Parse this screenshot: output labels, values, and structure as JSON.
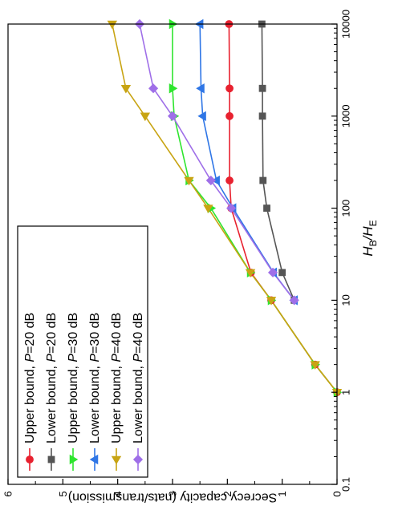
{
  "chart_data": {
    "type": "line",
    "x_scale": "log",
    "xlim": [
      0.1,
      10000
    ],
    "ylim": [
      0,
      6
    ],
    "x_ticks": [
      "0.1",
      "1",
      "10",
      "100",
      "1000",
      "10000"
    ],
    "y_ticks": [
      "0",
      "1",
      "2",
      "3",
      "4",
      "5",
      "6"
    ],
    "xlabel_main": "H",
    "xlabel_sub1": "B",
    "xlabel_mid": "/H",
    "xlabel_sub2": "E",
    "ylabel": "Secrecy capacity (nats/transmission)",
    "legend_position": "top-left",
    "grid": false,
    "series": [
      {
        "name_prefix": "Upper bound, ",
        "name_var": "P",
        "name_suffix": "=20 dB",
        "color": "#e8212f",
        "marker": "circle",
        "x": [
          1,
          2,
          10,
          20,
          100,
          200,
          1000,
          2000,
          10000
        ],
        "y": [
          0.0,
          0.4,
          1.2,
          1.57,
          1.93,
          1.96,
          1.96,
          1.96,
          1.97
        ]
      },
      {
        "name_prefix": "Lower bound, ",
        "name_var": "P",
        "name_suffix": "=20 dB",
        "color": "#555555",
        "marker": "square",
        "x": [
          10,
          20,
          100,
          200,
          1000,
          2000,
          10000
        ],
        "y": [
          0.78,
          1.0,
          1.28,
          1.35,
          1.36,
          1.36,
          1.37
        ]
      },
      {
        "name_prefix": "Upper bound, ",
        "name_var": "P",
        "name_suffix": "=30 dB",
        "color": "#2ee52e",
        "marker": "triangle-right",
        "x": [
          1,
          2,
          10,
          20,
          100,
          200,
          1000,
          2000,
          10000
        ],
        "y": [
          0.0,
          0.4,
          1.2,
          1.58,
          2.3,
          2.7,
          2.97,
          3.0,
          3.0
        ]
      },
      {
        "name_prefix": "Lower bound, ",
        "name_var": "P",
        "name_suffix": "=30 dB",
        "color": "#2f76e6",
        "marker": "triangle-left",
        "x": [
          10,
          20,
          100,
          200,
          1000,
          2000,
          10000
        ],
        "y": [
          0.78,
          1.16,
          1.9,
          2.2,
          2.45,
          2.48,
          2.5
        ]
      },
      {
        "name_prefix": "Upper bound, ",
        "name_var": "P",
        "name_suffix": "=40 dB",
        "color": "#c8a413",
        "marker": "triangle-down",
        "x": [
          1,
          2,
          10,
          20,
          100,
          200,
          1000,
          2000,
          10000
        ],
        "y": [
          0.0,
          0.4,
          1.2,
          1.58,
          2.35,
          2.7,
          3.5,
          3.85,
          4.1
        ]
      },
      {
        "name_prefix": "Lower bound, ",
        "name_var": "P",
        "name_suffix": "=40 dB",
        "color": "#9f6fe8",
        "marker": "diamond",
        "x": [
          10,
          20,
          100,
          200,
          1000,
          2000,
          10000
        ],
        "y": [
          0.78,
          1.17,
          1.93,
          2.3,
          3.0,
          3.35,
          3.6
        ]
      }
    ]
  }
}
